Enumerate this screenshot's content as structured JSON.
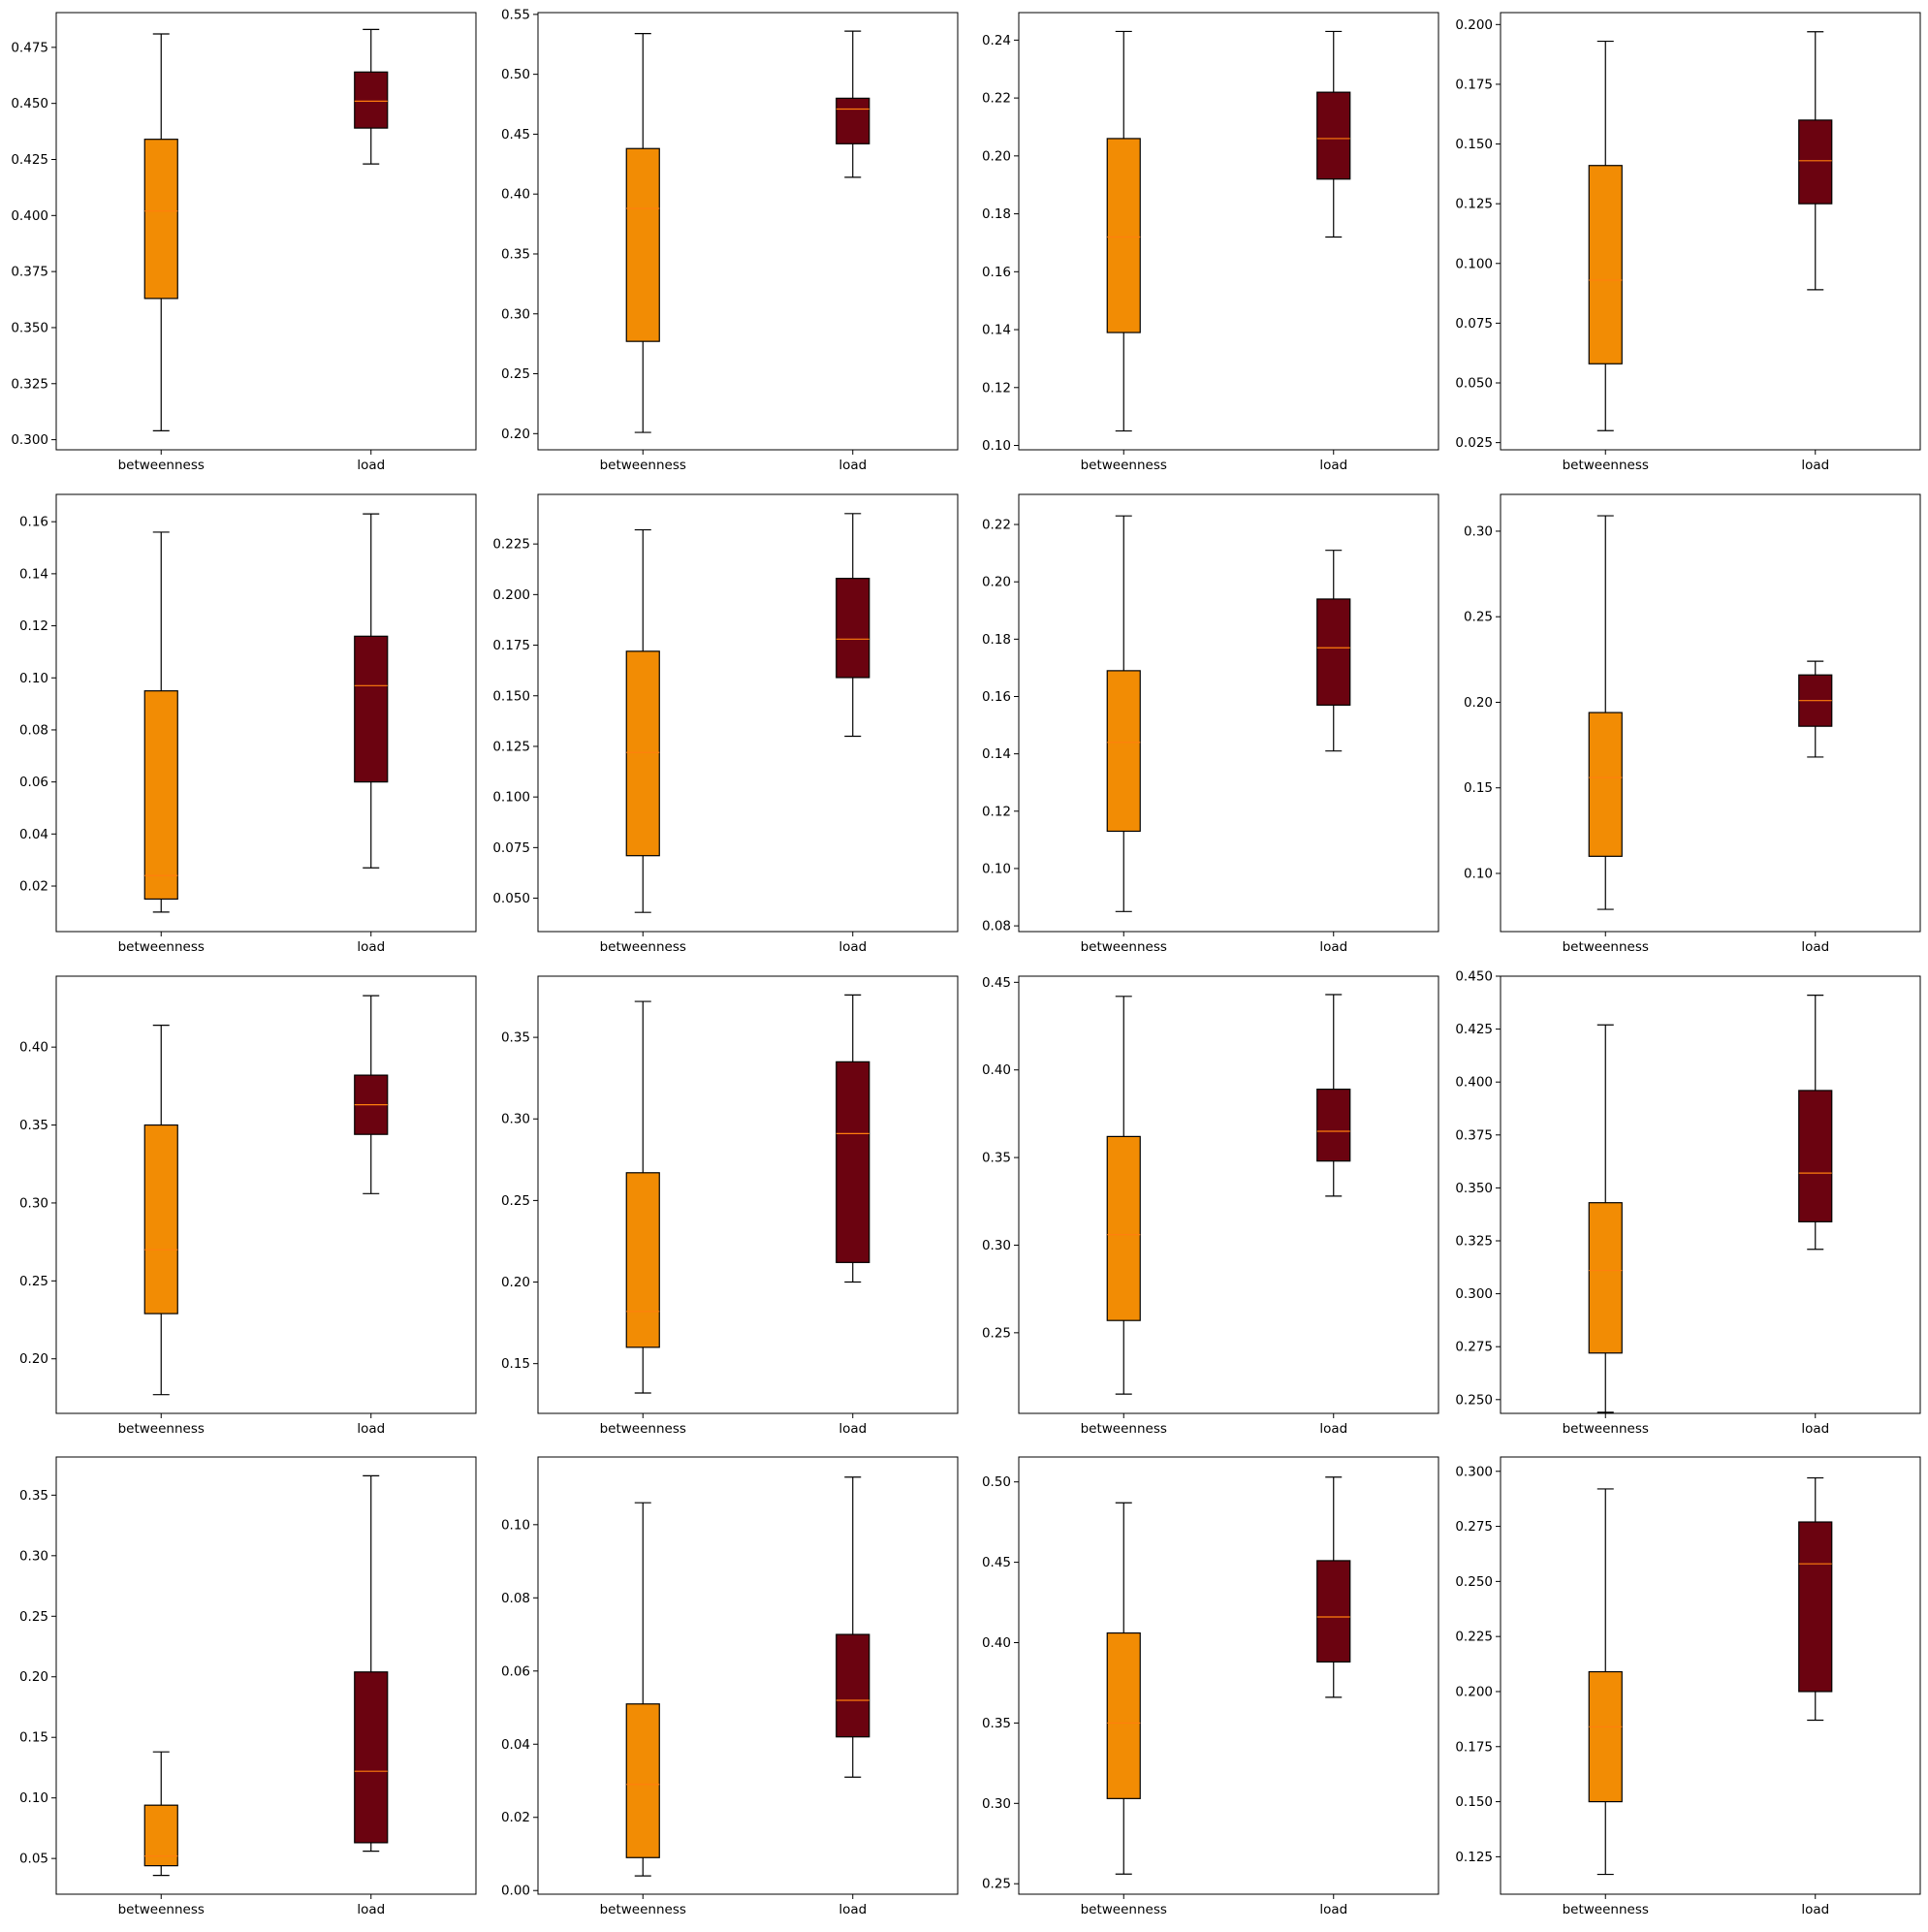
{
  "colors": {
    "betweenness_box": "#f28c04",
    "load_box": "#6b0310",
    "median_line": "#ff7f0e",
    "axis": "#000000",
    "background": "#ffffff"
  },
  "chart_data": [
    {
      "type": "box",
      "categories": [
        "betweenness",
        "load"
      ],
      "yticks": [
        "0.300",
        "0.325",
        "0.350",
        "0.375",
        "0.400",
        "0.425",
        "0.450",
        "0.475"
      ],
      "ylim": [
        0.2955,
        0.4905
      ],
      "boxes": [
        {
          "whislo": 0.304,
          "q1": 0.363,
          "med": 0.402,
          "q3": 0.434,
          "whishi": 0.481
        },
        {
          "whislo": 0.423,
          "q1": 0.439,
          "med": 0.451,
          "q3": 0.464,
          "whishi": 0.483
        }
      ]
    },
    {
      "type": "box",
      "categories": [
        "betweenness",
        "load"
      ],
      "yticks": [
        "0.20",
        "0.25",
        "0.30",
        "0.35",
        "0.40",
        "0.45",
        "0.50",
        "0.55"
      ],
      "ylim": [
        0.1865,
        0.5515
      ],
      "boxes": [
        {
          "whislo": 0.201,
          "q1": 0.277,
          "med": 0.388,
          "q3": 0.438,
          "whishi": 0.534
        },
        {
          "whislo": 0.414,
          "q1": 0.442,
          "med": 0.471,
          "q3": 0.48,
          "whishi": 0.536
        }
      ]
    },
    {
      "type": "box",
      "categories": [
        "betweenness",
        "load"
      ],
      "yticks": [
        "0.10",
        "0.12",
        "0.14",
        "0.16",
        "0.18",
        "0.20",
        "0.22",
        "0.24"
      ],
      "ylim": [
        0.0985,
        0.2495
      ],
      "boxes": [
        {
          "whislo": 0.105,
          "q1": 0.139,
          "med": 0.172,
          "q3": 0.206,
          "whishi": 0.243
        },
        {
          "whislo": 0.172,
          "q1": 0.192,
          "med": 0.206,
          "q3": 0.222,
          "whishi": 0.243
        }
      ]
    },
    {
      "type": "box",
      "categories": [
        "betweenness",
        "load"
      ],
      "yticks": [
        "0.025",
        "0.050",
        "0.075",
        "0.100",
        "0.125",
        "0.150",
        "0.175",
        "0.200"
      ],
      "ylim": [
        0.022,
        0.205
      ],
      "boxes": [
        {
          "whislo": 0.03,
          "q1": 0.058,
          "med": 0.093,
          "q3": 0.141,
          "whishi": 0.193
        },
        {
          "whislo": 0.089,
          "q1": 0.125,
          "med": 0.143,
          "q3": 0.16,
          "whishi": 0.197
        }
      ]
    },
    {
      "type": "box",
      "categories": [
        "betweenness",
        "load"
      ],
      "yticks": [
        "0.02",
        "0.04",
        "0.06",
        "0.08",
        "0.10",
        "0.12",
        "0.14",
        "0.16"
      ],
      "ylim": [
        0.0025,
        0.1705
      ],
      "boxes": [
        {
          "whislo": 0.01,
          "q1": 0.015,
          "med": 0.024,
          "q3": 0.095,
          "whishi": 0.156
        },
        {
          "whislo": 0.027,
          "q1": 0.06,
          "med": 0.097,
          "q3": 0.116,
          "whishi": 0.163
        }
      ]
    },
    {
      "type": "box",
      "categories": [
        "betweenness",
        "load"
      ],
      "yticks": [
        "0.050",
        "0.075",
        "0.100",
        "0.125",
        "0.150",
        "0.175",
        "0.200",
        "0.225"
      ],
      "ylim": [
        0.0335,
        0.2495
      ],
      "boxes": [
        {
          "whislo": 0.043,
          "q1": 0.071,
          "med": 0.122,
          "q3": 0.172,
          "whishi": 0.232
        },
        {
          "whislo": 0.13,
          "q1": 0.159,
          "med": 0.178,
          "q3": 0.208,
          "whishi": 0.24
        }
      ]
    },
    {
      "type": "box",
      "categories": [
        "betweenness",
        "load"
      ],
      "yticks": [
        "0.08",
        "0.10",
        "0.12",
        "0.14",
        "0.16",
        "0.18",
        "0.20",
        "0.22"
      ],
      "ylim": [
        0.078,
        0.2305
      ],
      "boxes": [
        {
          "whislo": 0.085,
          "q1": 0.113,
          "med": 0.144,
          "q3": 0.169,
          "whishi": 0.223
        },
        {
          "whislo": 0.141,
          "q1": 0.157,
          "med": 0.177,
          "q3": 0.194,
          "whishi": 0.211
        }
      ]
    },
    {
      "type": "box",
      "categories": [
        "betweenness",
        "load"
      ],
      "yticks": [
        "0.10",
        "0.15",
        "0.20",
        "0.25",
        "0.30"
      ],
      "ylim": [
        0.066,
        0.3215
      ],
      "boxes": [
        {
          "whislo": 0.079,
          "q1": 0.11,
          "med": 0.156,
          "q3": 0.194,
          "whishi": 0.309
        },
        {
          "whislo": 0.168,
          "q1": 0.186,
          "med": 0.201,
          "q3": 0.216,
          "whishi": 0.224
        }
      ]
    },
    {
      "type": "box",
      "categories": [
        "betweenness",
        "load"
      ],
      "yticks": [
        "0.20",
        "0.25",
        "0.30",
        "0.35",
        "0.40"
      ],
      "ylim": [
        0.165,
        0.4455
      ],
      "boxes": [
        {
          "whislo": 0.177,
          "q1": 0.229,
          "med": 0.27,
          "q3": 0.35,
          "whishi": 0.414
        },
        {
          "whislo": 0.306,
          "q1": 0.344,
          "med": 0.363,
          "q3": 0.382,
          "whishi": 0.433
        }
      ]
    },
    {
      "type": "box",
      "categories": [
        "betweenness",
        "load"
      ],
      "yticks": [
        "0.15",
        "0.20",
        "0.25",
        "0.30",
        "0.35"
      ],
      "ylim": [
        0.1195,
        0.3875
      ],
      "boxes": [
        {
          "whislo": 0.132,
          "q1": 0.16,
          "med": 0.182,
          "q3": 0.267,
          "whishi": 0.372
        },
        {
          "whislo": 0.2,
          "q1": 0.212,
          "med": 0.291,
          "q3": 0.335,
          "whishi": 0.376
        }
      ]
    },
    {
      "type": "box",
      "categories": [
        "betweenness",
        "load"
      ],
      "yticks": [
        "0.25",
        "0.30",
        "0.35",
        "0.40",
        "0.45"
      ],
      "ylim": [
        0.204,
        0.4535
      ],
      "boxes": [
        {
          "whislo": 0.215,
          "q1": 0.257,
          "med": 0.306,
          "q3": 0.362,
          "whishi": 0.442
        },
        {
          "whislo": 0.328,
          "q1": 0.348,
          "med": 0.365,
          "q3": 0.389,
          "whishi": 0.443
        }
      ]
    },
    {
      "type": "box",
      "categories": [
        "betweenness",
        "load"
      ],
      "yticks": [
        "0.250",
        "0.275",
        "0.300",
        "0.325",
        "0.350",
        "0.375",
        "0.400",
        "0.425",
        "0.450"
      ],
      "ylim": [
        0.2435,
        0.45
      ],
      "boxes": [
        {
          "whislo": 0.244,
          "q1": 0.272,
          "med": 0.311,
          "q3": 0.343,
          "whishi": 0.427
        },
        {
          "whislo": 0.321,
          "q1": 0.334,
          "med": 0.357,
          "q3": 0.396,
          "whishi": 0.441
        }
      ]
    },
    {
      "type": "box",
      "categories": [
        "betweenness",
        "load"
      ],
      "yticks": [
        "0.05",
        "0.10",
        "0.15",
        "0.20",
        "0.25",
        "0.30",
        "0.35"
      ],
      "ylim": [
        0.0205,
        0.3815
      ],
      "boxes": [
        {
          "whislo": 0.036,
          "q1": 0.044,
          "med": 0.052,
          "q3": 0.094,
          "whishi": 0.138
        },
        {
          "whislo": 0.056,
          "q1": 0.063,
          "med": 0.122,
          "q3": 0.204,
          "whishi": 0.366
        }
      ]
    },
    {
      "type": "box",
      "categories": [
        "betweenness",
        "load"
      ],
      "yticks": [
        "0.00",
        "0.02",
        "0.04",
        "0.06",
        "0.08",
        "0.10"
      ],
      "ylim": [
        -0.001,
        0.1185
      ],
      "boxes": [
        {
          "whislo": 0.004,
          "q1": 0.009,
          "med": 0.029,
          "q3": 0.051,
          "whishi": 0.106
        },
        {
          "whislo": 0.031,
          "q1": 0.042,
          "med": 0.052,
          "q3": 0.07,
          "whishi": 0.113
        }
      ]
    },
    {
      "type": "box",
      "categories": [
        "betweenness",
        "load"
      ],
      "yticks": [
        "0.25",
        "0.30",
        "0.35",
        "0.40",
        "0.45",
        "0.50"
      ],
      "ylim": [
        0.2435,
        0.5155
      ],
      "boxes": [
        {
          "whislo": 0.256,
          "q1": 0.303,
          "med": 0.35,
          "q3": 0.406,
          "whishi": 0.487
        },
        {
          "whislo": 0.366,
          "q1": 0.388,
          "med": 0.416,
          "q3": 0.451,
          "whishi": 0.503
        }
      ]
    },
    {
      "type": "box",
      "categories": [
        "betweenness",
        "load"
      ],
      "yticks": [
        "0.125",
        "0.150",
        "0.175",
        "0.200",
        "0.225",
        "0.250",
        "0.275",
        "0.300"
      ],
      "ylim": [
        0.108,
        0.3065
      ],
      "boxes": [
        {
          "whislo": 0.117,
          "q1": 0.15,
          "med": 0.184,
          "q3": 0.209,
          "whishi": 0.292
        },
        {
          "whislo": 0.187,
          "q1": 0.2,
          "med": 0.258,
          "q3": 0.277,
          "whishi": 0.297
        }
      ]
    }
  ]
}
